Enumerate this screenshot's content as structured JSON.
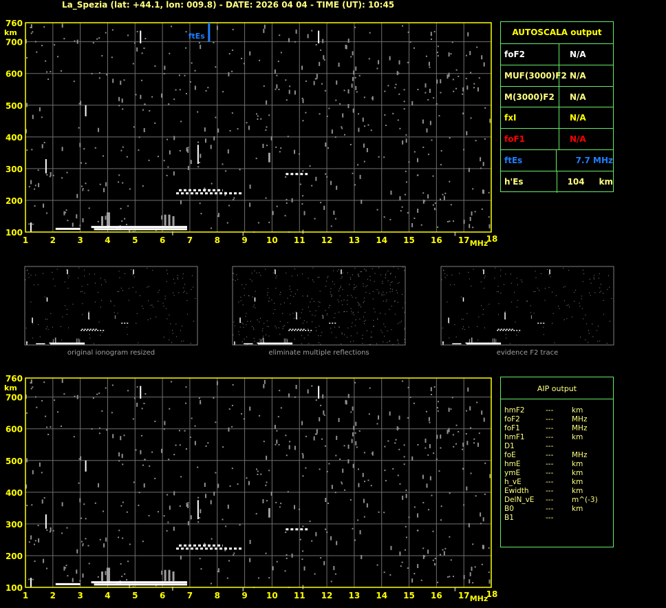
{
  "title": "La_Spezia (lat: +44.1, lon: 009.8) - DATE: 2026 04 04 - TIME (UT): 10:45",
  "colors": {
    "axis": "#ffff00",
    "grid": "#707070",
    "trace": "#ffffff",
    "noise": "#909090",
    "ftEs": "#1e7fff",
    "table_border": "#66ee66",
    "foF1": "#ff0000"
  },
  "chart_data": {
    "type": "scatter",
    "xlabel": "MHz",
    "ylabel": "km",
    "xlim": [
      1,
      18
    ],
    "ylim": [
      100,
      760
    ],
    "x_ticks": [
      "1",
      "2",
      "3",
      "4",
      "5",
      "6",
      "7",
      "8",
      "9",
      "10",
      "11",
      "12",
      "13",
      "14",
      "15",
      "16",
      "17",
      "18"
    ],
    "y_ticks": [
      "760",
      "700",
      "600",
      "500",
      "400",
      "300",
      "200",
      "100"
    ],
    "grid": true,
    "ftEs_marker": {
      "label": "ftEs",
      "freq": 7.7,
      "h": [
        700,
        760
      ]
    },
    "trace_segments": [
      [
        1.2,
        100,
        1.2,
        130
      ],
      [
        1.75,
        285,
        1.75,
        330
      ],
      [
        3.2,
        465,
        3.2,
        500
      ],
      [
        5.2,
        695,
        5.2,
        735
      ],
      [
        7.3,
        315,
        7.3,
        375
      ],
      [
        11.7,
        695,
        11.7,
        735
      ],
      [
        3.4,
        116,
        6.9,
        116
      ],
      [
        3.5,
        109,
        6.9,
        109
      ],
      [
        2.1,
        110,
        3.0,
        110
      ],
      [
        6.5,
        222,
        8.9,
        222
      ],
      [
        6.6,
        232,
        8.2,
        232
      ],
      [
        10.5,
        283,
        11.3,
        283
      ]
    ],
    "gray_segments": [
      [
        3.8,
        120,
        3.8,
        150
      ],
      [
        4.0,
        118,
        4.0,
        162
      ],
      [
        4.05,
        118,
        4.05,
        162
      ],
      [
        6.1,
        120,
        6.1,
        155
      ],
      [
        6.25,
        120,
        6.25,
        155
      ],
      [
        6.4,
        120,
        6.4,
        150
      ],
      [
        9.9,
        320,
        9.9,
        350
      ]
    ]
  },
  "autoscala": {
    "header": "AUTOSCALA output",
    "rows": [
      {
        "key": "foF2",
        "value": "N/A",
        "color": "#ffffff"
      },
      {
        "key": "MUF(3000)F2",
        "value": "N/A",
        "color": "#ffff80"
      },
      {
        "key": "M(3000)F2",
        "value": "N/A",
        "color": "#ffff80"
      },
      {
        "key": "fxI",
        "value": "N/A",
        "color": "#ffff00"
      },
      {
        "key": "foF1",
        "value": "N/A",
        "color": "#ff0000"
      },
      {
        "key": "ftEs",
        "value": "   7.7 MHz",
        "color": "#1e7fff"
      },
      {
        "key": "h'Es",
        "value": "104     km",
        "color": "#ffff80"
      }
    ]
  },
  "thumbnails": [
    {
      "caption": "original ionogram resized"
    },
    {
      "caption": "eliminate multiple reflections"
    },
    {
      "caption": "evidence F2 trace"
    }
  ],
  "aip": {
    "header": "AIP output",
    "rows": [
      [
        "hmF2",
        "---",
        "km"
      ],
      [
        "foF2",
        "---",
        "MHz"
      ],
      [
        "foF1",
        "---",
        "MHz"
      ],
      [
        "hmF1",
        "---",
        "km"
      ],
      [
        "D1",
        "---",
        ""
      ],
      [
        "foE",
        "---",
        "MHz"
      ],
      [
        "hmE",
        "---",
        "km"
      ],
      [
        "ymE",
        "---",
        "km"
      ],
      [
        "h_vE",
        "---",
        "km"
      ],
      [
        "Ewidth",
        "---",
        "km"
      ],
      [
        "DelN_vE",
        "---",
        "m^(-3)"
      ],
      [
        "B0",
        "---",
        "km"
      ],
      [
        "B1",
        "---",
        ""
      ]
    ]
  }
}
